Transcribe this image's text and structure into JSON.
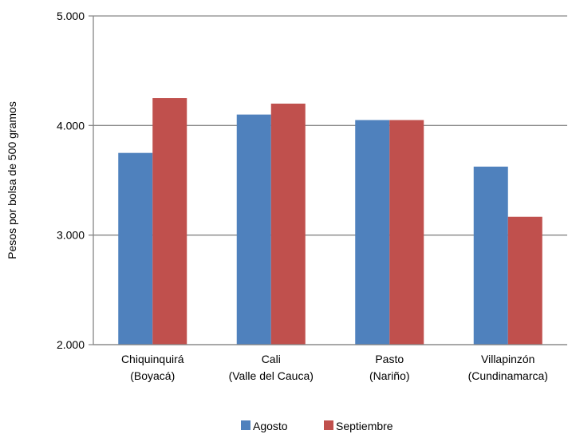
{
  "chart_data": {
    "type": "bar",
    "categories": [
      [
        "Chiquinquirá",
        "(Boyacá)"
      ],
      [
        "Cali",
        "(Valle del Cauca)"
      ],
      [
        "Pasto",
        "(Nariño)"
      ],
      [
        "Villapinzón",
        "(Cundinamarca)"
      ]
    ],
    "series": [
      {
        "name": "Agosto",
        "color": "#4F81BD",
        "values": [
          3750,
          4100,
          4050,
          3625
        ]
      },
      {
        "name": "Septiembre",
        "color": "#C0504D",
        "values": [
          4250,
          4200,
          4050,
          3167
        ]
      }
    ],
    "ylabel": "Pesos por bolsa de 500 gramos",
    "ylim": [
      2000,
      5000
    ],
    "yticks": [
      2000,
      3000,
      4000,
      5000
    ],
    "ytick_labels": [
      "2.000",
      "3.000",
      "4.000",
      "5.000"
    ],
    "grid": true,
    "legend_position": "bottom"
  }
}
